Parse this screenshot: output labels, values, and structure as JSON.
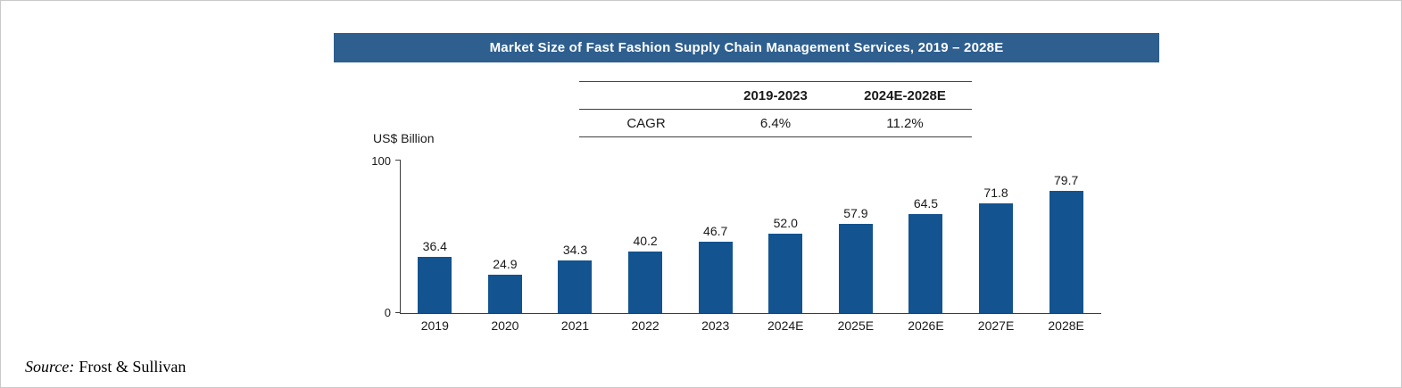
{
  "title": "Market Size of Fast Fashion Supply Chain Management Services, 2019 – 2028E",
  "colors": {
    "banner": "#2e5f8f",
    "bar": "#13538f",
    "axis": "#3c3c3c"
  },
  "table": {
    "headers": [
      "",
      "2019-2023",
      "2024E-2028E"
    ],
    "rows": [
      [
        "CAGR",
        "6.4%",
        "11.2%"
      ]
    ]
  },
  "chart_data": {
    "type": "bar",
    "title": "Market Size of Fast Fashion Supply Chain Management Services, 2019 – 2028E",
    "categories": [
      "2019",
      "2020",
      "2021",
      "2022",
      "2023",
      "2024E",
      "2025E",
      "2026E",
      "2027E",
      "2028E"
    ],
    "values": [
      36.4,
      24.9,
      34.3,
      40.2,
      46.7,
      52.0,
      57.9,
      64.5,
      71.8,
      79.7
    ],
    "value_labels": [
      "36.4",
      "24.9",
      "34.3",
      "40.2",
      "46.7",
      "52.0",
      "57.9",
      "64.5",
      "71.8",
      "79.7"
    ],
    "xlabel": "",
    "ylabel": "US$ Billion",
    "ylim": [
      0,
      100
    ],
    "ytick_labels": [
      "100",
      "0"
    ],
    "grid": false,
    "legend": "none"
  },
  "source": {
    "label": "Source:",
    "text": "Frost & Sullivan"
  }
}
